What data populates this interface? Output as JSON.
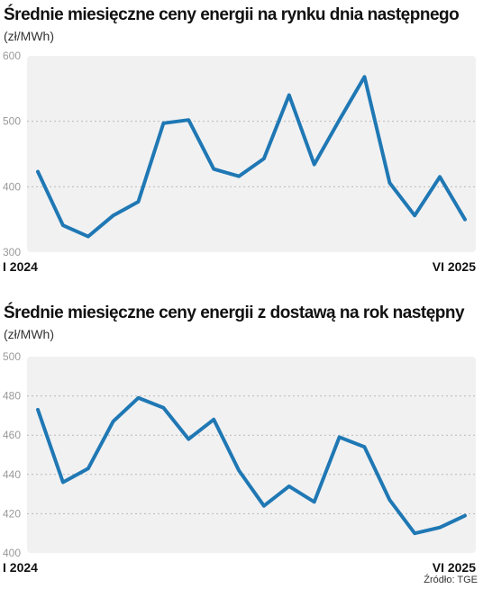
{
  "source": "Źródło: TGE",
  "chart_data": [
    {
      "type": "line",
      "title": "Średnie miesięczne ceny energii na rynku dnia następnego",
      "unit": "(zł/MWh)",
      "x_first": "I 2024",
      "x_last": "VI 2025",
      "yticks": [
        300,
        400,
        500,
        600
      ],
      "ylim": [
        300,
        600
      ],
      "grid": true,
      "color": "#1f78b4",
      "values": [
        423,
        341,
        324,
        356,
        377,
        497,
        502,
        427,
        416,
        443,
        540,
        434,
        502,
        568,
        406,
        356,
        415,
        350
      ]
    },
    {
      "type": "line",
      "title": "Średnie miesięczne  ceny energii z dostawą na rok następny",
      "unit": "(zł/MWh)",
      "x_first": "I 2024",
      "x_last": "VI 2025",
      "yticks": [
        400,
        420,
        440,
        460,
        480,
        500
      ],
      "ylim": [
        400,
        500
      ],
      "grid": true,
      "color": "#1f78b4",
      "values": [
        473,
        436,
        443,
        467,
        479,
        474,
        458,
        468,
        442,
        424,
        434,
        426,
        459,
        454,
        427,
        410,
        413,
        419
      ]
    }
  ]
}
